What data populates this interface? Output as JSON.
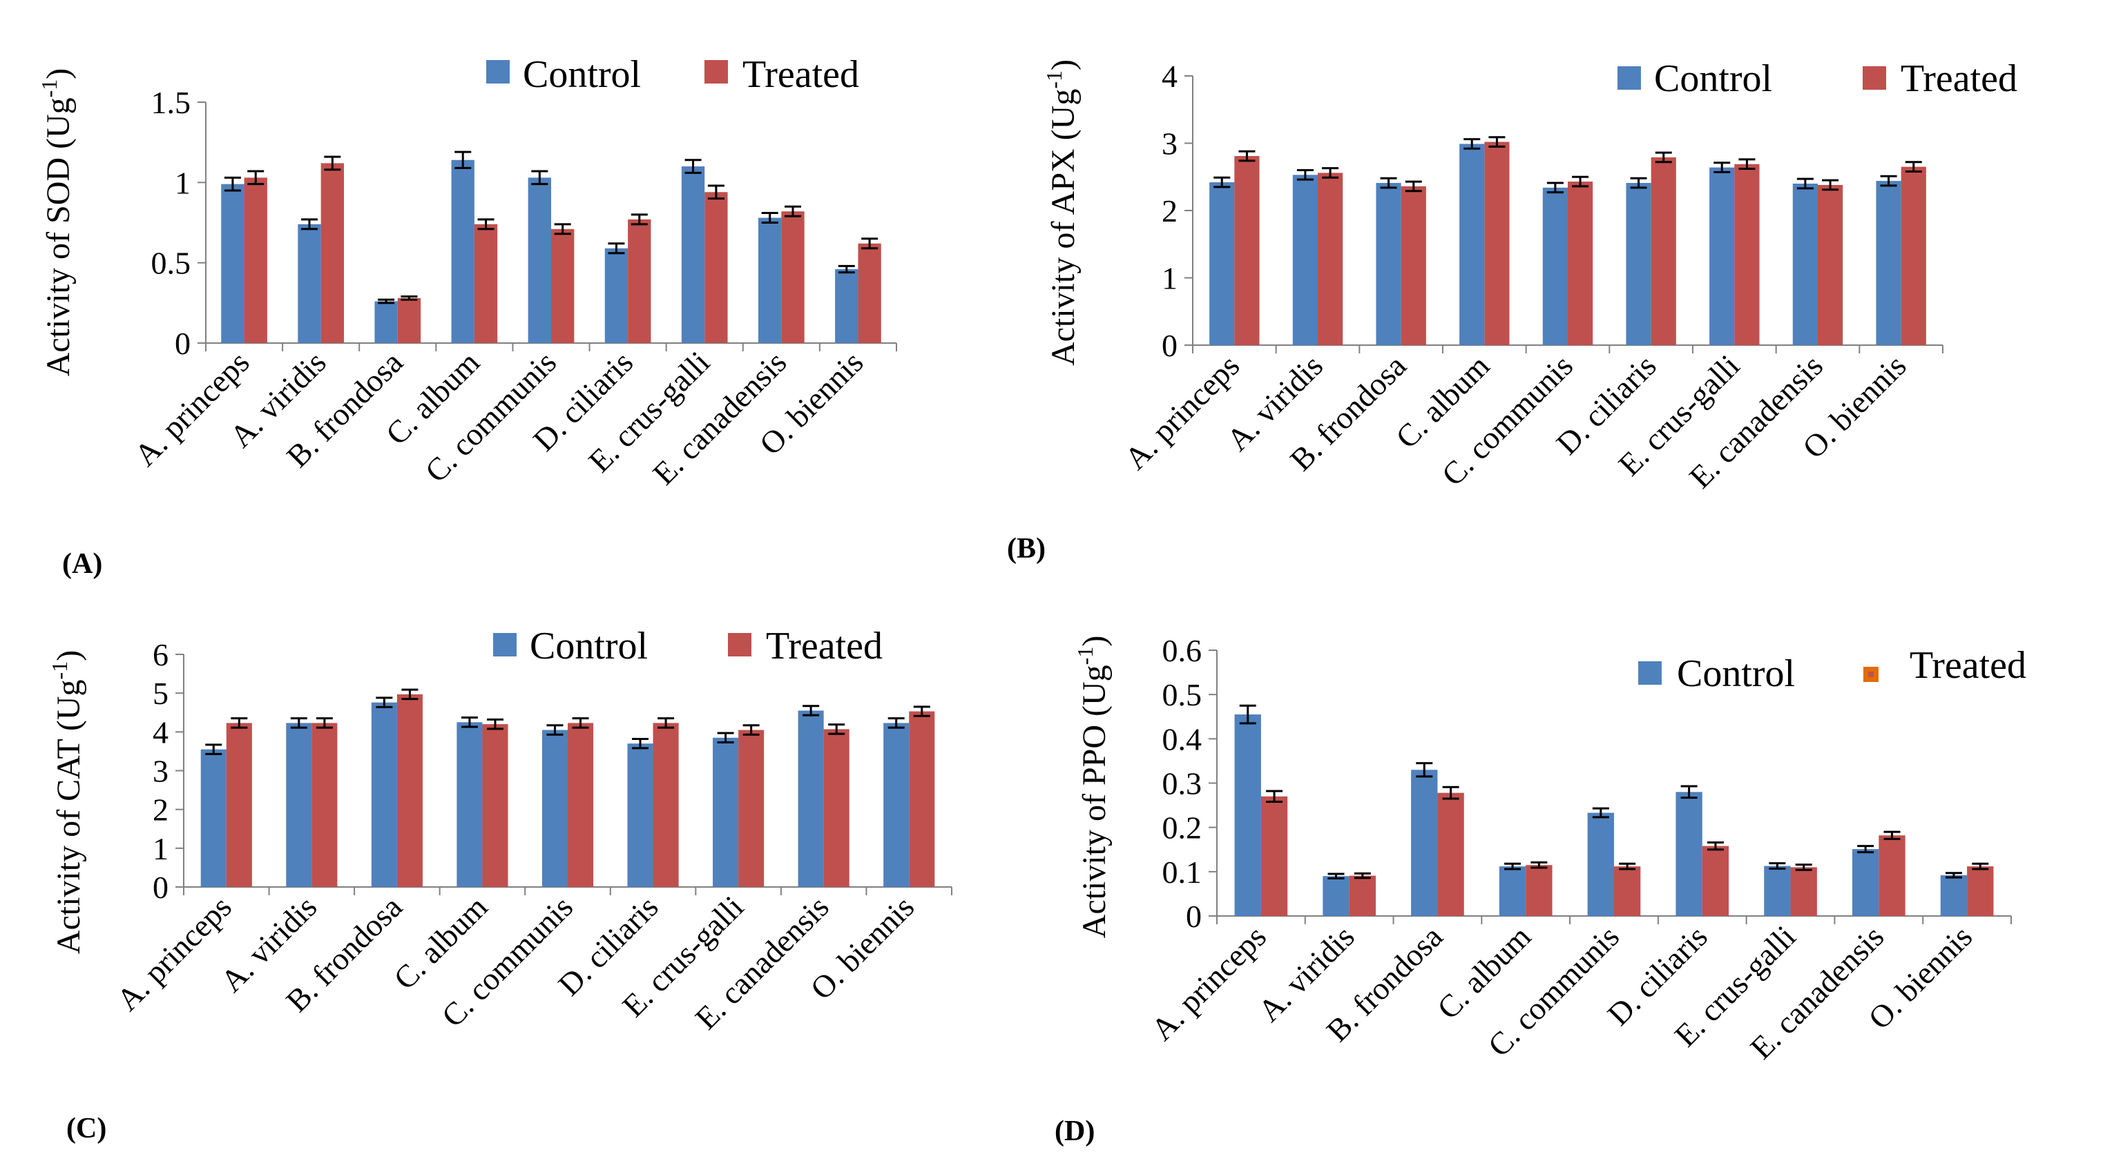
{
  "colors": {
    "control": "#4F81BD",
    "treated": "#C0504D",
    "treated_ppo_marker": "#E36C09",
    "axis": "#808080"
  },
  "chart_data": [
    {
      "type": "bar",
      "panel": "(A)",
      "ylabel_prefix": "Activity of SOD (Ug",
      "ylabel_sup": "-1",
      "ylabel_suffix": ")",
      "ylim": [
        0,
        1.5
      ],
      "ticks": [
        0,
        0.5,
        1,
        1.5
      ],
      "tick_labels": [
        "0",
        "0.5",
        "1",
        "1.5"
      ],
      "categories": [
        "A. princeps",
        "A. viridis",
        "B. frondosa",
        "C. album",
        "C. communis",
        "D. ciliaris",
        "E. crus-galli",
        "E. canadensis",
        "O. biennis"
      ],
      "series": [
        {
          "name": "Control",
          "values": [
            0.99,
            0.74,
            0.26,
            1.14,
            1.03,
            0.59,
            1.1,
            0.78,
            0.46
          ],
          "errors": [
            0.04,
            0.03,
            0.01,
            0.05,
            0.04,
            0.03,
            0.04,
            0.03,
            0.02
          ]
        },
        {
          "name": "Treated",
          "values": [
            1.03,
            1.12,
            0.28,
            0.74,
            0.71,
            0.77,
            0.94,
            0.82,
            0.62
          ],
          "errors": [
            0.04,
            0.04,
            0.01,
            0.03,
            0.03,
            0.03,
            0.04,
            0.03,
            0.03
          ]
        }
      ]
    },
    {
      "type": "bar",
      "panel": "(B)",
      "ylabel_prefix": "Activity of APX (Ug",
      "ylabel_sup": "-1",
      "ylabel_suffix": ")",
      "ylim": [
        0,
        4
      ],
      "ticks": [
        0,
        1,
        2,
        3,
        4
      ],
      "tick_labels": [
        "0",
        "1",
        "2",
        "3",
        "4"
      ],
      "categories": [
        "A. princeps",
        "A. viridis",
        "B. frondosa",
        "C. album",
        "C. communis",
        "D. ciliaris",
        "E. crus-galli",
        "E. canadensis",
        "O. biennis"
      ],
      "series": [
        {
          "name": "Control",
          "values": [
            2.42,
            2.53,
            2.41,
            2.99,
            2.34,
            2.41,
            2.64,
            2.4,
            2.44
          ],
          "errors": [
            0.07,
            0.07,
            0.07,
            0.07,
            0.07,
            0.07,
            0.07,
            0.07,
            0.07
          ]
        },
        {
          "name": "Treated",
          "values": [
            2.81,
            2.56,
            2.36,
            3.02,
            2.43,
            2.79,
            2.69,
            2.38,
            2.65
          ],
          "errors": [
            0.07,
            0.07,
            0.07,
            0.07,
            0.07,
            0.07,
            0.07,
            0.07,
            0.07
          ]
        }
      ]
    },
    {
      "type": "bar",
      "panel": "(C)",
      "ylabel_prefix": "Activity of CAT (Ug",
      "ylabel_sup": "-1",
      "ylabel_suffix": ")",
      "ylim": [
        0,
        6
      ],
      "ticks": [
        0,
        1,
        2,
        3,
        4,
        5,
        6
      ],
      "tick_labels": [
        "0",
        "1",
        "2",
        "3",
        "4",
        "5",
        "6"
      ],
      "categories": [
        "A. princeps",
        "A. viridis",
        "B. frondosa",
        "C. album",
        "C. communis",
        "D. ciliaris",
        "E. crus-galli",
        "E. canadensis",
        "O. biennis"
      ],
      "series": [
        {
          "name": "Control",
          "values": [
            3.55,
            4.23,
            4.76,
            4.25,
            4.05,
            3.7,
            3.85,
            4.55,
            4.23
          ],
          "errors": [
            0.12,
            0.12,
            0.12,
            0.12,
            0.12,
            0.12,
            0.12,
            0.12,
            0.12
          ]
        },
        {
          "name": "Treated",
          "values": [
            4.23,
            4.23,
            4.97,
            4.2,
            4.23,
            4.23,
            4.05,
            4.07,
            4.53
          ],
          "errors": [
            0.12,
            0.12,
            0.12,
            0.12,
            0.12,
            0.12,
            0.12,
            0.12,
            0.12
          ]
        }
      ]
    },
    {
      "type": "bar",
      "panel": "(D)",
      "ylabel_prefix": "Activity of PPO (Ug",
      "ylabel_sup": "-1",
      "ylabel_suffix": ")",
      "ylim": [
        0,
        0.6
      ],
      "ticks": [
        0,
        0.1,
        0.2,
        0.3,
        0.4,
        0.5,
        0.6
      ],
      "tick_labels": [
        "0",
        "0.1",
        "0.2",
        "0.3",
        "0.4",
        "0.5",
        "0.6"
      ],
      "categories": [
        "A. princeps",
        "A. viridis",
        "B. frondosa",
        "C. album",
        "C. communis",
        "D. ciliaris",
        "E. crus-galli",
        "E. canadensis",
        "O. biennis"
      ],
      "series": [
        {
          "name": "Control",
          "values": [
            0.455,
            0.09,
            0.33,
            0.112,
            0.233,
            0.28,
            0.113,
            0.151,
            0.092
          ],
          "errors": [
            0.02,
            0.005,
            0.015,
            0.006,
            0.01,
            0.013,
            0.006,
            0.007,
            0.005
          ]
        },
        {
          "name": "Treated",
          "values": [
            0.27,
            0.091,
            0.278,
            0.115,
            0.112,
            0.158,
            0.11,
            0.182,
            0.112
          ],
          "errors": [
            0.012,
            0.005,
            0.013,
            0.006,
            0.006,
            0.008,
            0.006,
            0.008,
            0.006
          ]
        }
      ]
    }
  ]
}
